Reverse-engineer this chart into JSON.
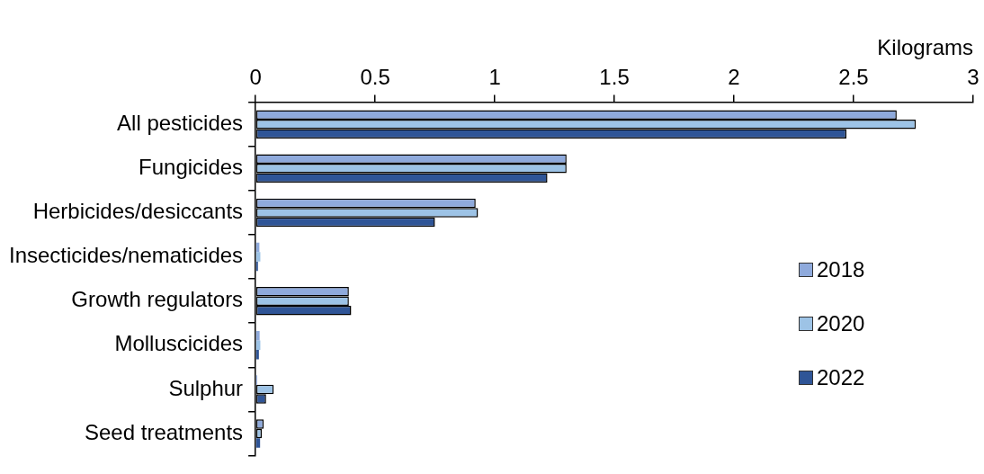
{
  "chart_data": {
    "type": "bar",
    "orientation": "horizontal",
    "xlabel": "Kilograms",
    "categories": [
      "All pesticides",
      "Fungicides",
      "Herbicides/desiccants",
      "Insecticides/nematicides",
      "Growth regulators",
      "Molluscicides",
      "Sulphur",
      "Seed treatments"
    ],
    "series": [
      {
        "name": "2018",
        "color": "#8faadc",
        "values": [
          2.68,
          1.3,
          0.92,
          0.016,
          0.39,
          0.017,
          0.007,
          0.034
        ]
      },
      {
        "name": "2020",
        "color": "#9dc3e6",
        "values": [
          2.76,
          1.3,
          0.93,
          0.02,
          0.39,
          0.02,
          0.076,
          0.026
        ]
      },
      {
        "name": "2022",
        "color": "#2f5597",
        "values": [
          2.47,
          1.22,
          0.75,
          0.01,
          0.4,
          0.014,
          0.044,
          0.019
        ]
      }
    ],
    "xlim": [
      0,
      3
    ],
    "xticks": [
      0,
      0.5,
      1,
      1.5,
      2,
      2.5,
      3
    ],
    "grid": false,
    "legend": "right"
  }
}
